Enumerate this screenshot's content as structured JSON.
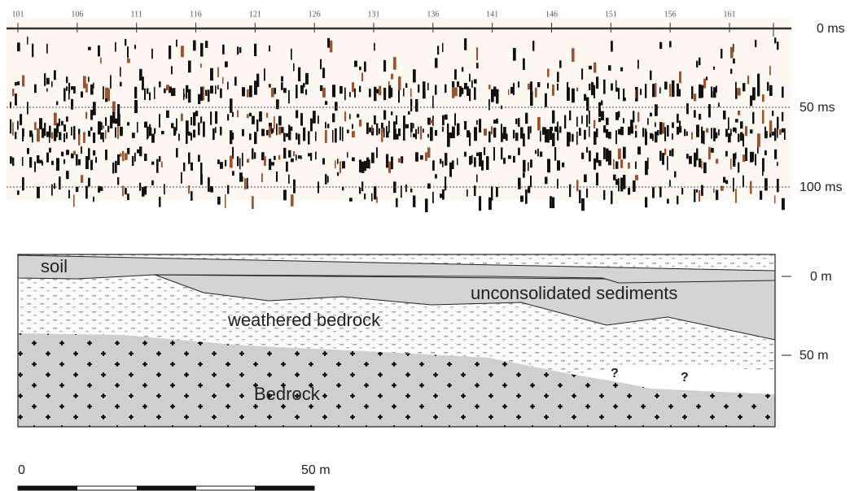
{
  "radargram": {
    "trace_labels": [
      "101",
      "106",
      "111",
      "116",
      "121",
      "126",
      "131",
      "136",
      "141",
      "146",
      "151",
      "156",
      "161"
    ],
    "time_labels": [
      "0 ms",
      "50 ms",
      "100 ms"
    ]
  },
  "section": {
    "depth_labels": [
      "0 m",
      "50 m"
    ],
    "layers": [
      "soil",
      "unconsolidated sediments",
      "weathered bedrock",
      "Bedrock"
    ],
    "uncertain": [
      "?",
      "?"
    ]
  },
  "scale_bar": {
    "labels": [
      "0",
      "50 m"
    ]
  }
}
